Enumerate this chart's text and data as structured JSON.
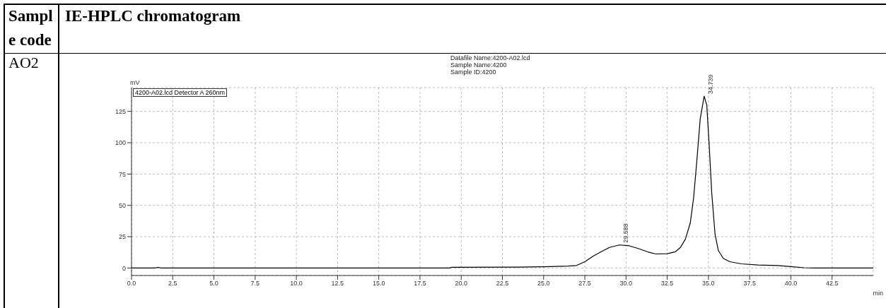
{
  "chart_data": {
    "type": "line",
    "title": "IE-HPLC chromatogram",
    "annotations": [
      "Sample code",
      "AO2",
      "Datafile Name:4200-A02.lcd",
      "Sample Name:4200",
      "Sample ID:4200",
      {
        "text": "29.588",
        "x": 29.588,
        "y": 18.4
      },
      {
        "text": "34.739",
        "x": 34.739,
        "y": 137.2
      }
    ],
    "xlabel": "min",
    "ylabel": "mV",
    "series": [
      {
        "name": "4200-A02.lcd Detector A 260nm",
        "color": "#000000",
        "x": [
          0,
          1.4,
          1.6,
          1.8,
          19.3,
          19.4,
          23.5,
          25,
          26.5,
          27,
          27.5,
          28,
          28.5,
          29,
          29.6,
          30.2,
          30.8,
          31.4,
          31.8,
          32.5,
          33,
          33.3,
          33.6,
          33.9,
          34.1,
          34.3,
          34.5,
          34.74,
          34.9,
          35.05,
          35.2,
          35.4,
          35.6,
          35.9,
          36.3,
          37,
          38,
          39.2,
          40,
          40.8,
          41.5,
          45
        ],
        "values": [
          0,
          0,
          0.5,
          0,
          0,
          0.5,
          0.7,
          1,
          1.5,
          2,
          5,
          9.4,
          13,
          16.4,
          18.4,
          17.7,
          15.3,
          12.5,
          11.2,
          11.4,
          13,
          16.4,
          23,
          36,
          56,
          86,
          119,
          137.2,
          130,
          97,
          60,
          27,
          14,
          7.7,
          5,
          3.3,
          2.4,
          2,
          1.1,
          0.2,
          0,
          0
        ]
      }
    ],
    "xlim": [
      0,
      45
    ],
    "ylim": [
      -6,
      144
    ],
    "xticks": [
      {
        "value": 0,
        "label": "0.0"
      },
      {
        "value": 2.5,
        "label": "2.5"
      },
      {
        "value": 5,
        "label": "5.0"
      },
      {
        "value": 7.5,
        "label": "7.5"
      },
      {
        "value": 10,
        "label": "10.0"
      },
      {
        "value": 12.5,
        "label": "12.5"
      },
      {
        "value": 15,
        "label": "15.0"
      },
      {
        "value": 17.5,
        "label": "17.5"
      },
      {
        "value": 20,
        "label": "20.0"
      },
      {
        "value": 22.5,
        "label": "22.5"
      },
      {
        "value": 25,
        "label": "25.0"
      },
      {
        "value": 27.5,
        "label": "27.5"
      },
      {
        "value": 30,
        "label": "30.0"
      },
      {
        "value": 32.5,
        "label": "32.5"
      },
      {
        "value": 35,
        "label": "35.0"
      },
      {
        "value": 37.5,
        "label": "37.5"
      },
      {
        "value": 40,
        "label": "40.0"
      },
      {
        "value": 42.5,
        "label": "42.5"
      }
    ],
    "yticks": [
      0,
      25,
      50,
      75,
      100,
      125
    ],
    "grid": true,
    "legend": "top left",
    "marker": "none",
    "line_style": "solid"
  }
}
